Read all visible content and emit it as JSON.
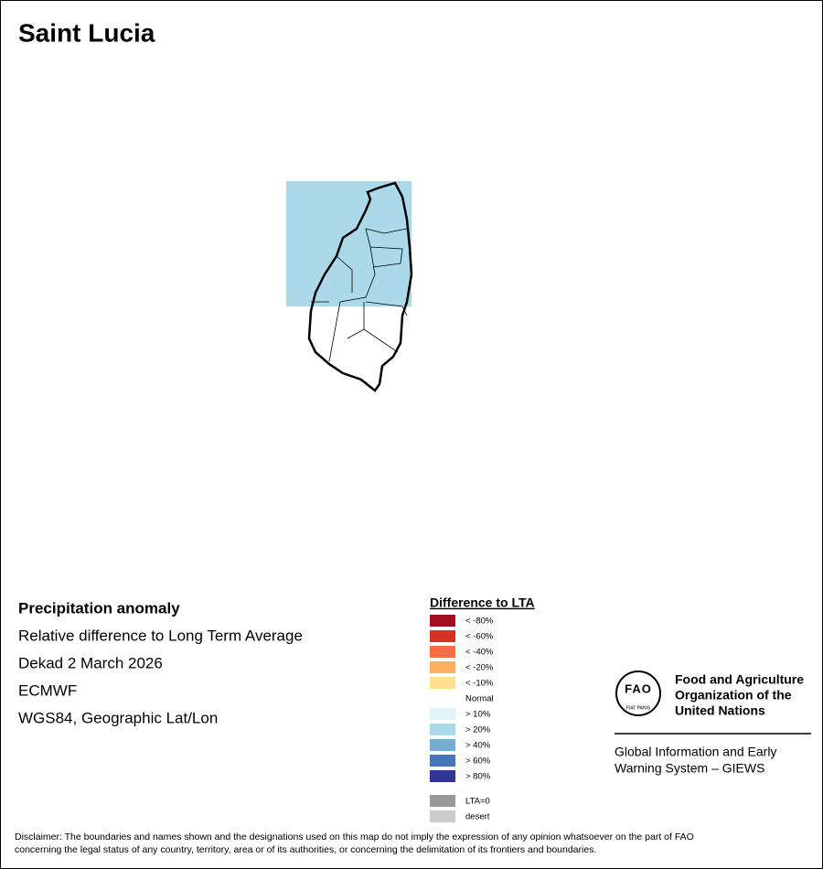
{
  "header": {
    "title": "Saint Lucia"
  },
  "info": [
    "Precipitation anomaly",
    "Relative difference to Long Term Average",
    "Dekad 2 March 2026",
    "ECMWF",
    "WGS84, Geographic Lat/Lon"
  ],
  "legend": {
    "title": "Difference to LTA",
    "items": [
      {
        "label": "< -80%",
        "color": "#a50f26"
      },
      {
        "label": "< -60%",
        "color": "#d73027"
      },
      {
        "label": "< -40%",
        "color": "#f46d43"
      },
      {
        "label": "< -20%",
        "color": "#fdae61"
      },
      {
        "label": "< -10%",
        "color": "#fee090"
      },
      {
        "label": "Normal",
        "color": "#ffffff"
      },
      {
        "label": "> 10%",
        "color": "#e0f3f8"
      },
      {
        "label": "> 20%",
        "color": "#abd9e9"
      },
      {
        "label": "> 40%",
        "color": "#74add1"
      },
      {
        "label": "> 60%",
        "color": "#4575b4"
      },
      {
        "label": "> 80%",
        "color": "#313695"
      }
    ],
    "extra_items": [
      {
        "label": "LTA=0",
        "color": "#999999"
      },
      {
        "label": "desert",
        "color": "#cccccc"
      }
    ]
  },
  "logo": {
    "emblem": "FAO",
    "motto": "FIAT PANIS",
    "org_lines": [
      "Food and Agriculture",
      "Organization of the",
      "United Nations"
    ],
    "system_lines": [
      "Global Information and Early",
      "Warning System – GIEWS"
    ]
  },
  "disclaimer": [
    "Disclaimer: The boundaries and names shown and the designations used on this map do not imply the expression of any opinion whatsoever on the part of FAO",
    "concerning the legal status of any country, territory, area or of its authorities, or concerning the delimitation of its frontiers and boundaries."
  ]
}
